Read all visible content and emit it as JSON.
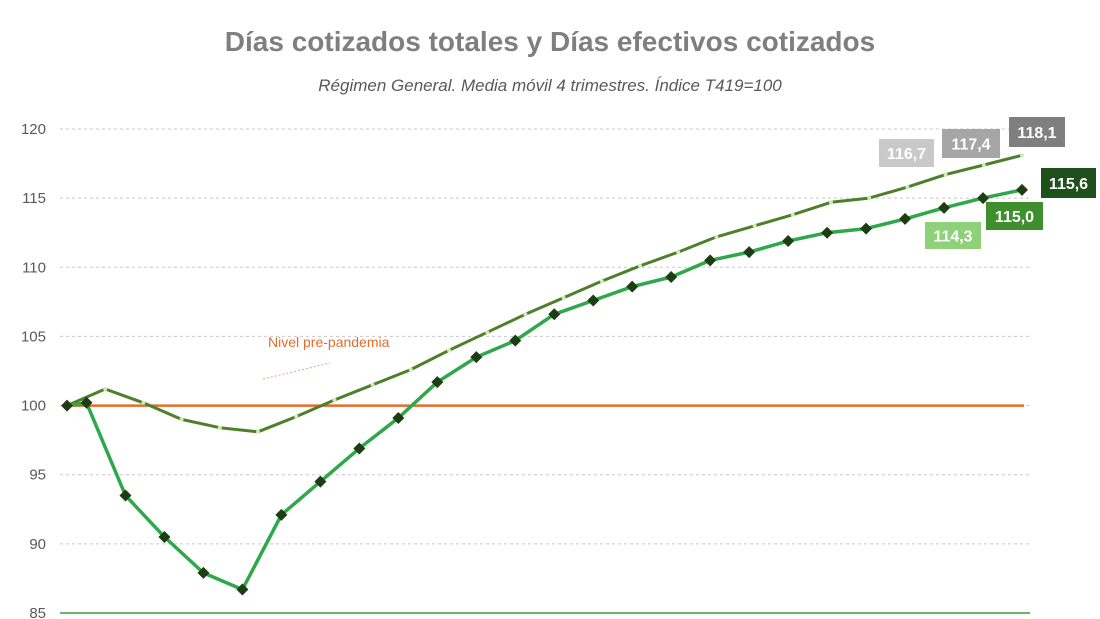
{
  "chart_data": {
    "type": "line",
    "title": "Días cotizados totales y Días efectivos cotizados",
    "subtitle": "Régimen General. Media móvil 4 trimestres. Índice T419=100",
    "ylim": [
      85,
      120
    ],
    "yticks": [
      "85",
      "90",
      "95",
      "100",
      "105",
      "110",
      "115",
      "120"
    ],
    "grid": true,
    "series": [
      {
        "values": [
          100.0,
          101.2,
          100.2,
          99.0,
          98.4,
          98.1,
          99.2,
          100.4,
          101.5,
          102.6,
          104.0,
          105.3,
          106.6,
          107.8,
          109.0,
          110.1,
          111.1,
          112.2,
          113.0,
          113.8,
          114.7,
          115.0,
          115.8,
          116.7,
          117.4,
          118.1
        ],
        "color": "#4f7f2a"
      },
      {
        "values": [
          100.0,
          100.2,
          null,
          93.5,
          null,
          90.5,
          null,
          87.9,
          null,
          86.7,
          null,
          92.1,
          null,
          94.5,
          null,
          96.9,
          null,
          99.1,
          null,
          101.7,
          null,
          103.5,
          null,
          104.7,
          null,
          106.6,
          null,
          107.6,
          null,
          108.6,
          null,
          109.3,
          null,
          110.5,
          null,
          111.1,
          null,
          111.9,
          null,
          112.5,
          null,
          112.8,
          null,
          113.5,
          null,
          114.3,
          null,
          115.0,
          null,
          115.6
        ],
        "color": "#2ea84a"
      }
    ],
    "reference_lines": [
      {
        "label": "Nivel pre-pandemia",
        "value": 100,
        "color": "#e46c2a"
      }
    ],
    "data_labels": [
      {
        "text": "116,7",
        "color": "#c9c9c9"
      },
      {
        "text": "117,4",
        "color": "#a6a6a6"
      },
      {
        "text": "118,1",
        "color": "#7f7f7f"
      },
      {
        "text": "114,3",
        "color": "#8fd17a"
      },
      {
        "text": "115,0",
        "color": "#3f8f2f"
      },
      {
        "text": "115,6",
        "color": "#1f4f1a"
      }
    ]
  }
}
